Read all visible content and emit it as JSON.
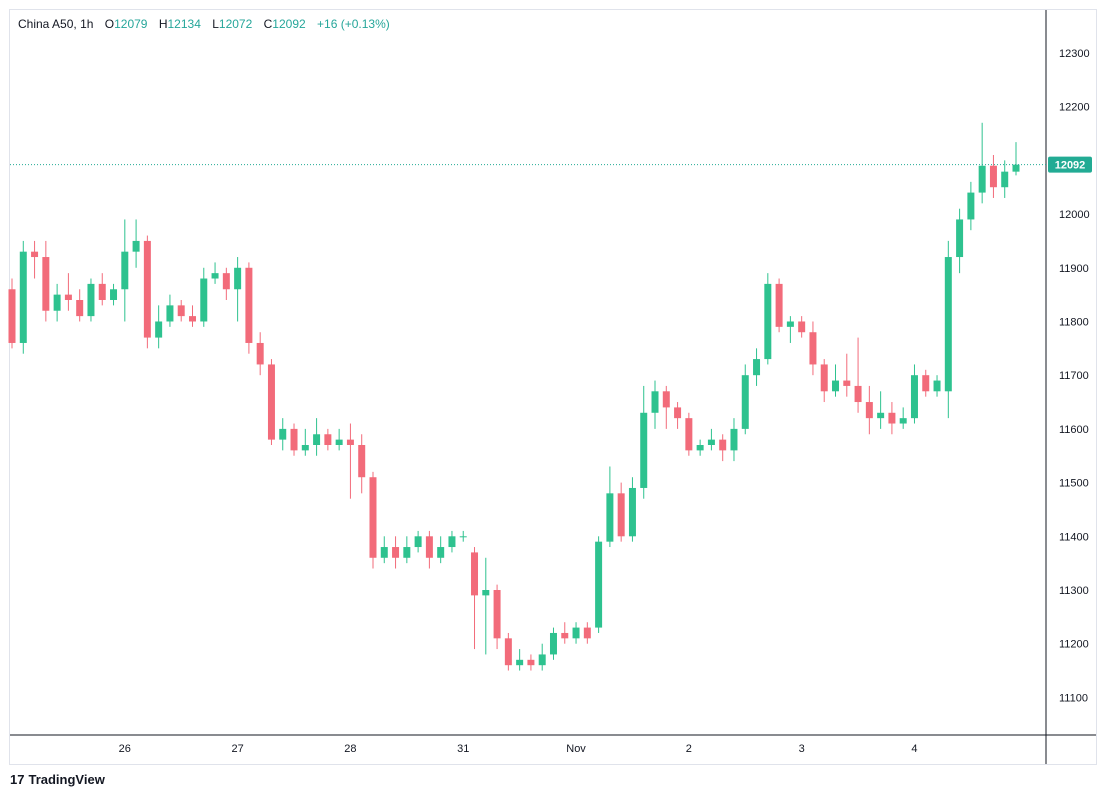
{
  "legend": {
    "symbol": "China A50",
    "interval": "1h",
    "open_key": "O",
    "open": "12079",
    "high_key": "H",
    "high": "12134",
    "low_key": "L",
    "low": "12072",
    "close_key": "C",
    "close": "12092",
    "change": "+16 (+0.13%)"
  },
  "brand": {
    "logo": "17",
    "name": "TradingView"
  },
  "colors": {
    "up": "#26a69a",
    "up_bright": "#2ec28f",
    "down": "#ef5350",
    "down_soft": "#f26b7a",
    "grid": "#f0f3fa",
    "axis": "#131722",
    "badge": "#22ab94"
  },
  "chart_data": {
    "type": "candlestick",
    "title": "China A50",
    "interval": "1h",
    "y_ticks": [
      11100,
      11200,
      11300,
      11400,
      11500,
      11600,
      11700,
      11800,
      11900,
      12000,
      12100,
      12200,
      12300
    ],
    "ylim": [
      11030,
      12380
    ],
    "x_ticks": [
      {
        "label": "26",
        "index": 10
      },
      {
        "label": "27",
        "index": 20
      },
      {
        "label": "28",
        "index": 30
      },
      {
        "label": "31",
        "index": 40
      },
      {
        "label": "Nov",
        "index": 50
      },
      {
        "label": "2",
        "index": 60
      },
      {
        "label": "3",
        "index": 70
      },
      {
        "label": "4",
        "index": 80
      }
    ],
    "last_price": 12092,
    "candles": [
      [
        11860,
        11760,
        11880,
        11750
      ],
      [
        11760,
        11930,
        11950,
        11740
      ],
      [
        11930,
        11920,
        11950,
        11880
      ],
      [
        11920,
        11820,
        11950,
        11800
      ],
      [
        11820,
        11850,
        11870,
        11800
      ],
      [
        11850,
        11840,
        11890,
        11820
      ],
      [
        11840,
        11810,
        11860,
        11800
      ],
      [
        11810,
        11870,
        11880,
        11800
      ],
      [
        11870,
        11840,
        11890,
        11830
      ],
      [
        11840,
        11860,
        11870,
        11830
      ],
      [
        11860,
        11930,
        11990,
        11800
      ],
      [
        11930,
        11950,
        11990,
        11900
      ],
      [
        11950,
        11770,
        11960,
        11750
      ],
      [
        11770,
        11800,
        11830,
        11750
      ],
      [
        11800,
        11830,
        11850,
        11790
      ],
      [
        11830,
        11810,
        11840,
        11800
      ],
      [
        11810,
        11800,
        11830,
        11790
      ],
      [
        11800,
        11880,
        11900,
        11790
      ],
      [
        11880,
        11890,
        11910,
        11870
      ],
      [
        11890,
        11860,
        11900,
        11840
      ],
      [
        11860,
        11900,
        11920,
        11800
      ],
      [
        11900,
        11760,
        11910,
        11740
      ],
      [
        11760,
        11720,
        11780,
        11700
      ],
      [
        11720,
        11580,
        11730,
        11570
      ],
      [
        11580,
        11600,
        11620,
        11560
      ],
      [
        11600,
        11560,
        11610,
        11550
      ],
      [
        11560,
        11570,
        11600,
        11550
      ],
      [
        11570,
        11590,
        11620,
        11550
      ],
      [
        11590,
        11570,
        11600,
        11560
      ],
      [
        11570,
        11580,
        11600,
        11560
      ],
      [
        11580,
        11570,
        11610,
        11470
      ],
      [
        11570,
        11510,
        11590,
        11480
      ],
      [
        11510,
        11360,
        11520,
        11340
      ],
      [
        11360,
        11380,
        11400,
        11350
      ],
      [
        11380,
        11360,
        11400,
        11340
      ],
      [
        11360,
        11380,
        11400,
        11350
      ],
      [
        11380,
        11400,
        11410,
        11370
      ],
      [
        11400,
        11360,
        11410,
        11340
      ],
      [
        11360,
        11380,
        11400,
        11350
      ],
      [
        11380,
        11400,
        11410,
        11370
      ],
      [
        11400,
        11400,
        11410,
        11390
      ],
      [
        11370,
        11290,
        11380,
        11190
      ],
      [
        11290,
        11300,
        11360,
        11180
      ],
      [
        11300,
        11210,
        11310,
        11190
      ],
      [
        11210,
        11160,
        11220,
        11150
      ],
      [
        11160,
        11170,
        11190,
        11150
      ],
      [
        11170,
        11160,
        11180,
        11150
      ],
      [
        11160,
        11180,
        11200,
        11150
      ],
      [
        11180,
        11220,
        11230,
        11170
      ],
      [
        11220,
        11210,
        11240,
        11200
      ],
      [
        11210,
        11230,
        11240,
        11200
      ],
      [
        11230,
        11210,
        11240,
        11200
      ],
      [
        11230,
        11390,
        11400,
        11220
      ],
      [
        11390,
        11480,
        11530,
        11380
      ],
      [
        11480,
        11400,
        11500,
        11390
      ],
      [
        11400,
        11490,
        11510,
        11390
      ],
      [
        11490,
        11630,
        11680,
        11470
      ],
      [
        11630,
        11670,
        11690,
        11600
      ],
      [
        11670,
        11640,
        11680,
        11600
      ],
      [
        11640,
        11620,
        11650,
        11600
      ],
      [
        11620,
        11560,
        11630,
        11550
      ],
      [
        11560,
        11570,
        11580,
        11550
      ],
      [
        11570,
        11580,
        11600,
        11560
      ],
      [
        11580,
        11560,
        11590,
        11540
      ],
      [
        11560,
        11600,
        11620,
        11540
      ],
      [
        11600,
        11700,
        11720,
        11590
      ],
      [
        11700,
        11730,
        11750,
        11680
      ],
      [
        11730,
        11870,
        11890,
        11720
      ],
      [
        11870,
        11790,
        11880,
        11780
      ],
      [
        11790,
        11800,
        11810,
        11760
      ],
      [
        11800,
        11780,
        11810,
        11770
      ],
      [
        11780,
        11720,
        11800,
        11700
      ],
      [
        11720,
        11670,
        11730,
        11650
      ],
      [
        11670,
        11690,
        11720,
        11660
      ],
      [
        11690,
        11680,
        11740,
        11660
      ],
      [
        11680,
        11650,
        11770,
        11630
      ],
      [
        11650,
        11620,
        11680,
        11590
      ],
      [
        11620,
        11630,
        11670,
        11600
      ],
      [
        11630,
        11610,
        11650,
        11590
      ],
      [
        11610,
        11620,
        11640,
        11600
      ],
      [
        11620,
        11700,
        11720,
        11610
      ],
      [
        11700,
        11670,
        11710,
        11660
      ],
      [
        11670,
        11690,
        11700,
        11660
      ],
      [
        11670,
        11920,
        11950,
        11620
      ],
      [
        11920,
        11990,
        12010,
        11890
      ],
      [
        11990,
        12040,
        12060,
        11970
      ],
      [
        12040,
        12090,
        12170,
        12020
      ],
      [
        12090,
        12050,
        12110,
        12030
      ],
      [
        12050,
        12079,
        12100,
        12030
      ],
      [
        12079,
        12092,
        12134,
        12072
      ]
    ]
  }
}
